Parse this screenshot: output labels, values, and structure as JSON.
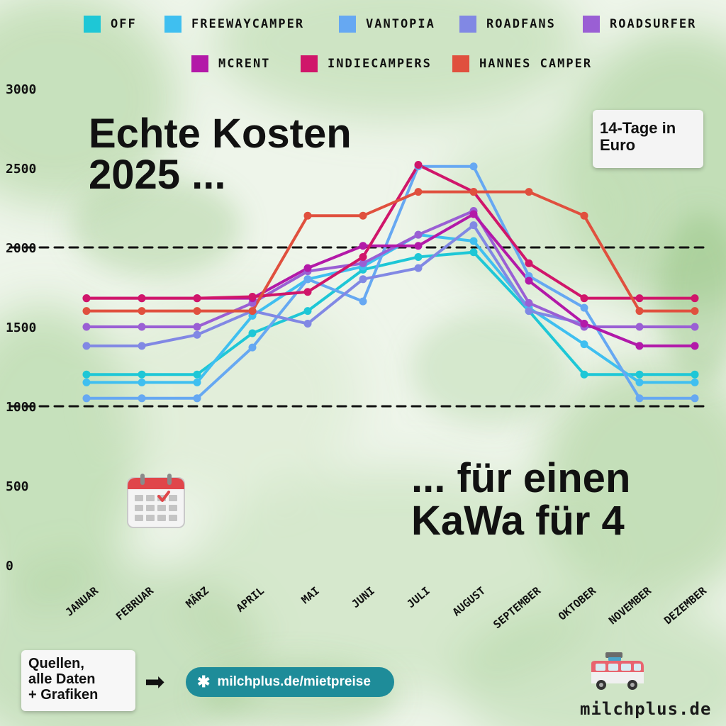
{
  "colors": {
    "OFF": "#1ec7d6",
    "FREEWAYCAMPER": "#3fbff0",
    "VANTOPIA": "#66a8f2",
    "ROADFANS": "#8188e4",
    "ROADSURFER": "#9a5fd4",
    "MCRENT": "#b319a8",
    "INDIECAMPERS": "#d0166a",
    "HANNES CAMPER": "#e0503e"
  },
  "headline": {
    "line1": "Echte Kosten",
    "line2": "2025 ..."
  },
  "subline": {
    "line1": "... für einen",
    "line2": "KaWa für 4"
  },
  "unit_note": {
    "line1": "14-Tage in",
    "line2": "Euro"
  },
  "sources": {
    "line1": "Quellen,",
    "line2": "alle Daten",
    "line3": "+ Grafiken"
  },
  "link": {
    "icon": "asterisk-icon",
    "text": "milchplus.de/mietpreise"
  },
  "brand": {
    "name": "milchplus.de"
  },
  "chart_data": {
    "type": "line",
    "categories": [
      "JANUAR",
      "FEBRUAR",
      "MÄRZ",
      "APRIL",
      "MAI",
      "JUNI",
      "JULI",
      "AUGUST",
      "SEPTEMBER",
      "OKTOBER",
      "NOVEMBER",
      "DEZEMBER"
    ],
    "yticks": [
      "0",
      "500",
      "1000",
      "1500",
      "2000",
      "2500",
      "3000"
    ],
    "ylim": [
      0,
      3000
    ],
    "reference_lines": [
      1000,
      2000
    ],
    "series": [
      {
        "name": "OFF",
        "values": [
          1200,
          1200,
          1200,
          1460,
          1600,
          1860,
          1940,
          1970,
          1600,
          1200,
          1200,
          1200
        ]
      },
      {
        "name": "FREEWAYCAMPER",
        "values": [
          1150,
          1150,
          1150,
          1570,
          1800,
          1880,
          2080,
          2040,
          1620,
          1390,
          1150,
          1150
        ]
      },
      {
        "name": "VANTOPIA",
        "values": [
          1050,
          1050,
          1050,
          1370,
          1800,
          1660,
          2510,
          2510,
          1820,
          1620,
          1050,
          1050
        ]
      },
      {
        "name": "ROADFANS",
        "values": [
          1380,
          1380,
          1450,
          1600,
          1520,
          1800,
          1870,
          2140,
          1600,
          1520,
          1380,
          1380
        ]
      },
      {
        "name": "ROADSURFER",
        "values": [
          1500,
          1500,
          1500,
          1650,
          1850,
          1900,
          2080,
          2230,
          1650,
          1500,
          1500,
          1500
        ]
      },
      {
        "name": "MCRENT",
        "values": [
          1680,
          1680,
          1680,
          1680,
          1870,
          2010,
          2010,
          2210,
          1790,
          1520,
          1380,
          1380
        ]
      },
      {
        "name": "INDIECAMPERS",
        "values": [
          1680,
          1680,
          1680,
          1690,
          1720,
          1940,
          2520,
          2350,
          1900,
          1680,
          1680,
          1680
        ]
      },
      {
        "name": "HANNES CAMPER",
        "values": [
          1600,
          1600,
          1600,
          1600,
          2200,
          2200,
          2350,
          2350,
          2350,
          2200,
          1600,
          1600
        ]
      }
    ]
  }
}
